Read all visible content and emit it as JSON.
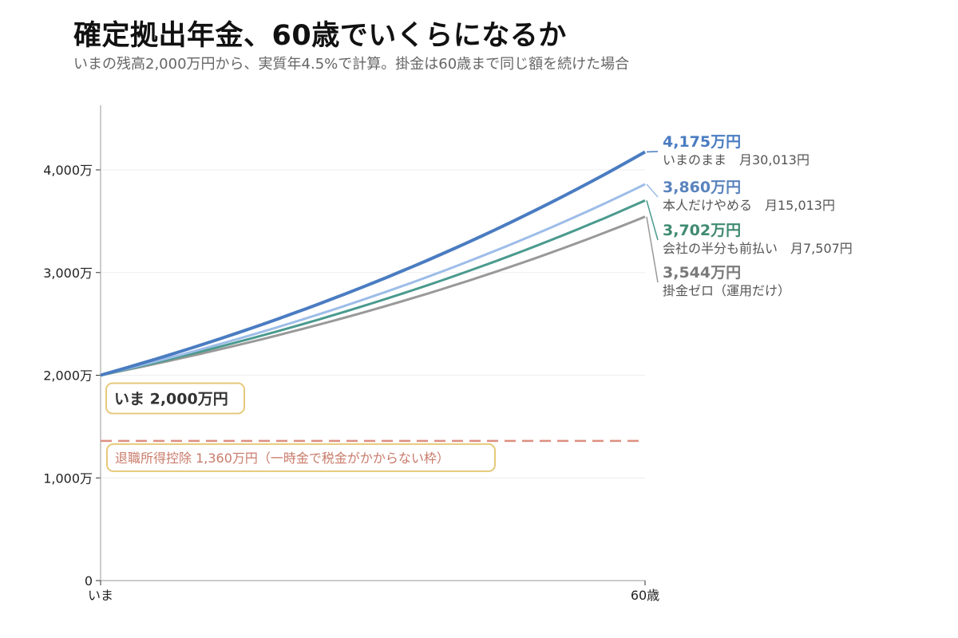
{
  "header": {
    "title": "確定拠出年金、60歳でいくらになるか",
    "subtitle": "いまの残高2,000万円から、実質年4.5%で計算。掛金は60歳まで同じ額を続けた場合"
  },
  "chart_data": {
    "type": "line",
    "x_labels": [
      "いま",
      "60歳"
    ],
    "ylim": [
      0,
      4800
    ],
    "y_ticks": [
      {
        "value": 0,
        "label": "0"
      },
      {
        "value": 1000,
        "label": "1,000万"
      },
      {
        "value": 2000,
        "label": "2,000万"
      },
      {
        "value": 3000,
        "label": "3,000万"
      },
      {
        "value": 4000,
        "label": "4,000万"
      }
    ],
    "grid": true,
    "start_value": 2000,
    "growth_rate": 0.045,
    "series": [
      {
        "key": "keep",
        "name": "いまのまま",
        "contribution": "月30,013円",
        "start": 2000,
        "end": 4175,
        "value_label": "4,175万円",
        "color": "#4a7cc1",
        "label_color": "#4a7cc1",
        "width": 4
      },
      {
        "key": "self_stop",
        "name": "本人だけやめる",
        "contribution": "月15,013円",
        "start": 2000,
        "end": 3860,
        "value_label": "3,860万円",
        "color": "#9dbde8",
        "label_color": "#5a83bd",
        "width": 3
      },
      {
        "key": "half_advance",
        "name": "会社の半分も前払い",
        "contribution": "月7,507円",
        "start": 2000,
        "end": 3702,
        "value_label": "3,702万円",
        "color": "#4a9a8e",
        "label_color": "#3f8a72",
        "width": 3
      },
      {
        "key": "zero",
        "name": "掛金ゼロ（運用だけ）",
        "contribution": "",
        "start": 2000,
        "end": 3544,
        "value_label": "3,544万円",
        "color": "#999999",
        "label_color": "#7a7a7a",
        "width": 3
      }
    ],
    "annotations": {
      "now": {
        "label": "いま 2,000万円",
        "value": 2000
      },
      "deduction": {
        "label": "退職所得控除 1,360万円（一時金で税金がかからない枠）",
        "value": 1360,
        "color": "#dd8f80"
      }
    }
  }
}
